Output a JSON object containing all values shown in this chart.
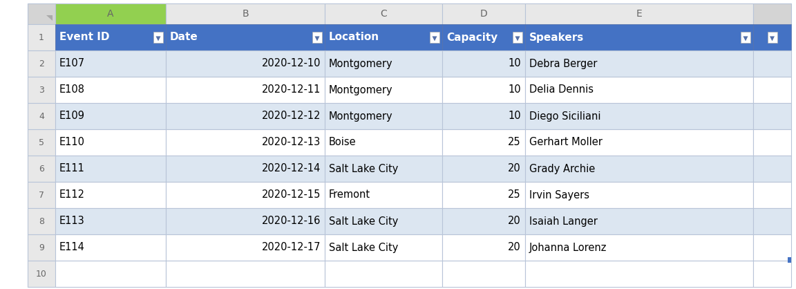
{
  "columns": [
    "Event ID",
    "Date",
    "Location",
    "Capacity",
    "Speakers"
  ],
  "col_letters": [
    "A",
    "B",
    "C",
    "D",
    "E"
  ],
  "rows": [
    [
      "E107",
      "2020-12-10",
      "Montgomery",
      "10",
      "Debra Berger"
    ],
    [
      "E108",
      "2020-12-11",
      "Montgomery",
      "10",
      "Delia Dennis"
    ],
    [
      "E109",
      "2020-12-12",
      "Montgomery",
      "10",
      "Diego Siciliani"
    ],
    [
      "E110",
      "2020-12-13",
      "Boise",
      "25",
      "Gerhart Moller"
    ],
    [
      "E111",
      "2020-12-14",
      "Salt Lake City",
      "20",
      "Grady Archie"
    ],
    [
      "E112",
      "2020-12-15",
      "Fremont",
      "25",
      "Irvin Sayers"
    ],
    [
      "E113",
      "2020-12-16",
      "Salt Lake City",
      "20",
      "Isaiah Langer"
    ],
    [
      "E114",
      "2020-12-17",
      "Salt Lake City",
      "20",
      "Johanna Lorenz"
    ]
  ],
  "header_bg": "#4472C4",
  "header_fg": "#FFFFFF",
  "row_bg_even": "#DCE6F1",
  "row_bg_odd": "#FFFFFF",
  "grid_color": "#B8C4D8",
  "col_a_header_bg": "#92D050",
  "row_num_color": "#666666",
  "col_letter_color": "#666666",
  "cell_font_color": "#000000",
  "col_aligns": [
    "left",
    "right",
    "left",
    "right",
    "left"
  ],
  "fig_bg": "#FFFFFF",
  "data_font_size": 10.5,
  "header_font_size": 11
}
